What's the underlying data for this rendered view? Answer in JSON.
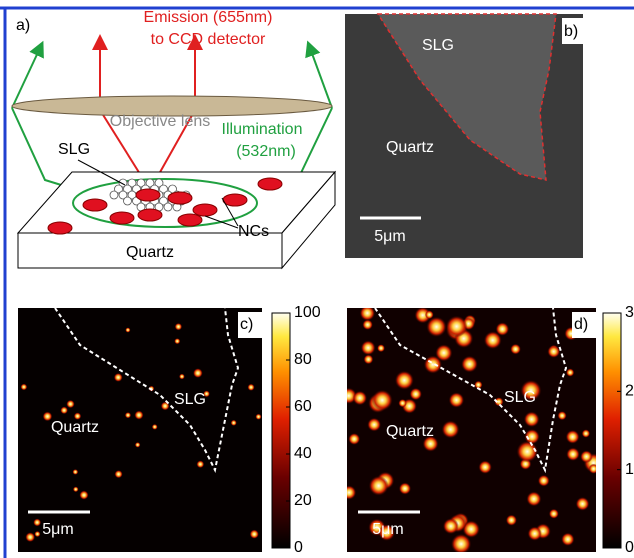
{
  "panels": {
    "a": {
      "label": "a)",
      "emission": [
        "Emission (655nm)",
        "to CCD detector"
      ],
      "lens": "Objective lens",
      "illumination": [
        "Illumination",
        "(532nm)"
      ],
      "slg": "SLG",
      "ncs": "NCs",
      "substrate": "Quartz"
    },
    "b": {
      "label": "b)",
      "slg": "SLG",
      "quartz": "Quartz",
      "scale": "5μm"
    },
    "c": {
      "label": "c)",
      "slg": "SLG",
      "quartz": "Quartz",
      "scale": "5μm",
      "colorbar": {
        "lim": [
          0,
          100
        ],
        "ticks": [
          0,
          20,
          40,
          60,
          80,
          100
        ]
      }
    },
    "d": {
      "label": "d)",
      "slg": "SLG",
      "quartz": "Quartz",
      "scale": "5μm",
      "colorbar": {
        "lim": [
          0,
          3
        ],
        "ticks": [
          0,
          1,
          2,
          3
        ]
      }
    }
  }
}
